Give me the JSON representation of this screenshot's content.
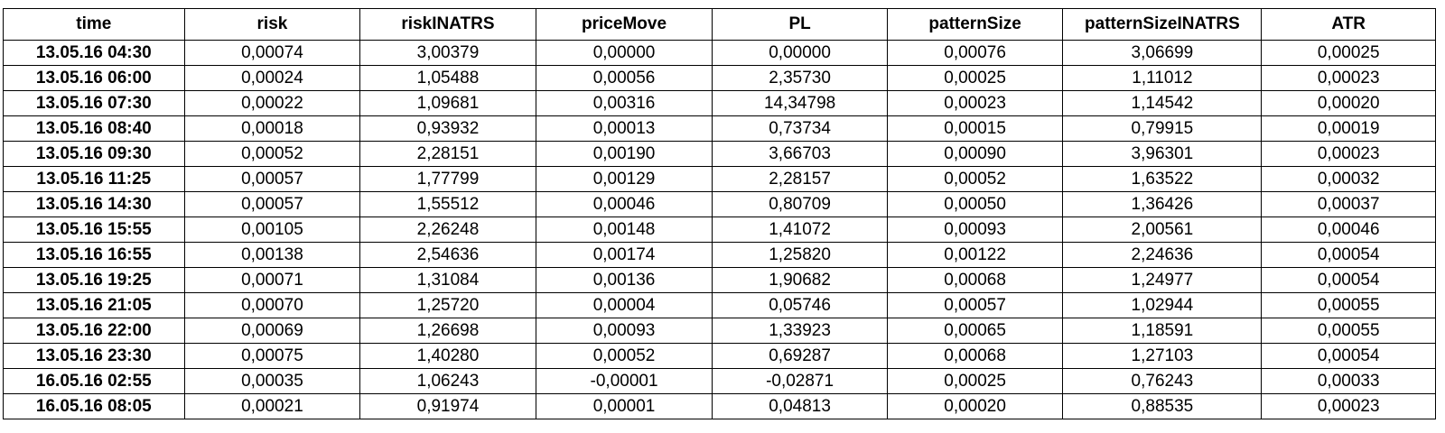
{
  "table": {
    "columns": [
      "time",
      "risk",
      "riskINATRS",
      "priceMove",
      "PL",
      "patternSize",
      "patternSizeINATRS",
      "ATR"
    ],
    "rows": [
      [
        "13.05.16 04:30",
        "0,00074",
        "3,00379",
        "0,00000",
        "0,00000",
        "0,00076",
        "3,06699",
        "0,00025"
      ],
      [
        "13.05.16 06:00",
        "0,00024",
        "1,05488",
        "0,00056",
        "2,35730",
        "0,00025",
        "1,11012",
        "0,00023"
      ],
      [
        "13.05.16 07:30",
        "0,00022",
        "1,09681",
        "0,00316",
        "14,34798",
        "0,00023",
        "1,14542",
        "0,00020"
      ],
      [
        "13.05.16 08:40",
        "0,00018",
        "0,93932",
        "0,00013",
        "0,73734",
        "0,00015",
        "0,79915",
        "0,00019"
      ],
      [
        "13.05.16 09:30",
        "0,00052",
        "2,28151",
        "0,00190",
        "3,66703",
        "0,00090",
        "3,96301",
        "0,00023"
      ],
      [
        "13.05.16 11:25",
        "0,00057",
        "1,77799",
        "0,00129",
        "2,28157",
        "0,00052",
        "1,63522",
        "0,00032"
      ],
      [
        "13.05.16 14:30",
        "0,00057",
        "1,55512",
        "0,00046",
        "0,80709",
        "0,00050",
        "1,36426",
        "0,00037"
      ],
      [
        "13.05.16 15:55",
        "0,00105",
        "2,26248",
        "0,00148",
        "1,41072",
        "0,00093",
        "2,00561",
        "0,00046"
      ],
      [
        "13.05.16 16:55",
        "0,00138",
        "2,54636",
        "0,00174",
        "1,25820",
        "0,00122",
        "2,24636",
        "0,00054"
      ],
      [
        "13.05.16 19:25",
        "0,00071",
        "1,31084",
        "0,00136",
        "1,90682",
        "0,00068",
        "1,24977",
        "0,00054"
      ],
      [
        "13.05.16 21:05",
        "0,00070",
        "1,25720",
        "0,00004",
        "0,05746",
        "0,00057",
        "1,02944",
        "0,00055"
      ],
      [
        "13.05.16 22:00",
        "0,00069",
        "1,26698",
        "0,00093",
        "1,33923",
        "0,00065",
        "1,18591",
        "0,00055"
      ],
      [
        "13.05.16 23:30",
        "0,00075",
        "1,40280",
        "0,00052",
        "0,69287",
        "0,00068",
        "1,27103",
        "0,00054"
      ],
      [
        "16.05.16 02:55",
        "0,00035",
        "1,06243",
        "-0,00001",
        "-0,02871",
        "0,00025",
        "0,76243",
        "0,00033"
      ],
      [
        "16.05.16 08:05",
        "0,00021",
        "0,91974",
        "0,00001",
        "0,04813",
        "0,00020",
        "0,88535",
        "0,00023"
      ]
    ]
  }
}
